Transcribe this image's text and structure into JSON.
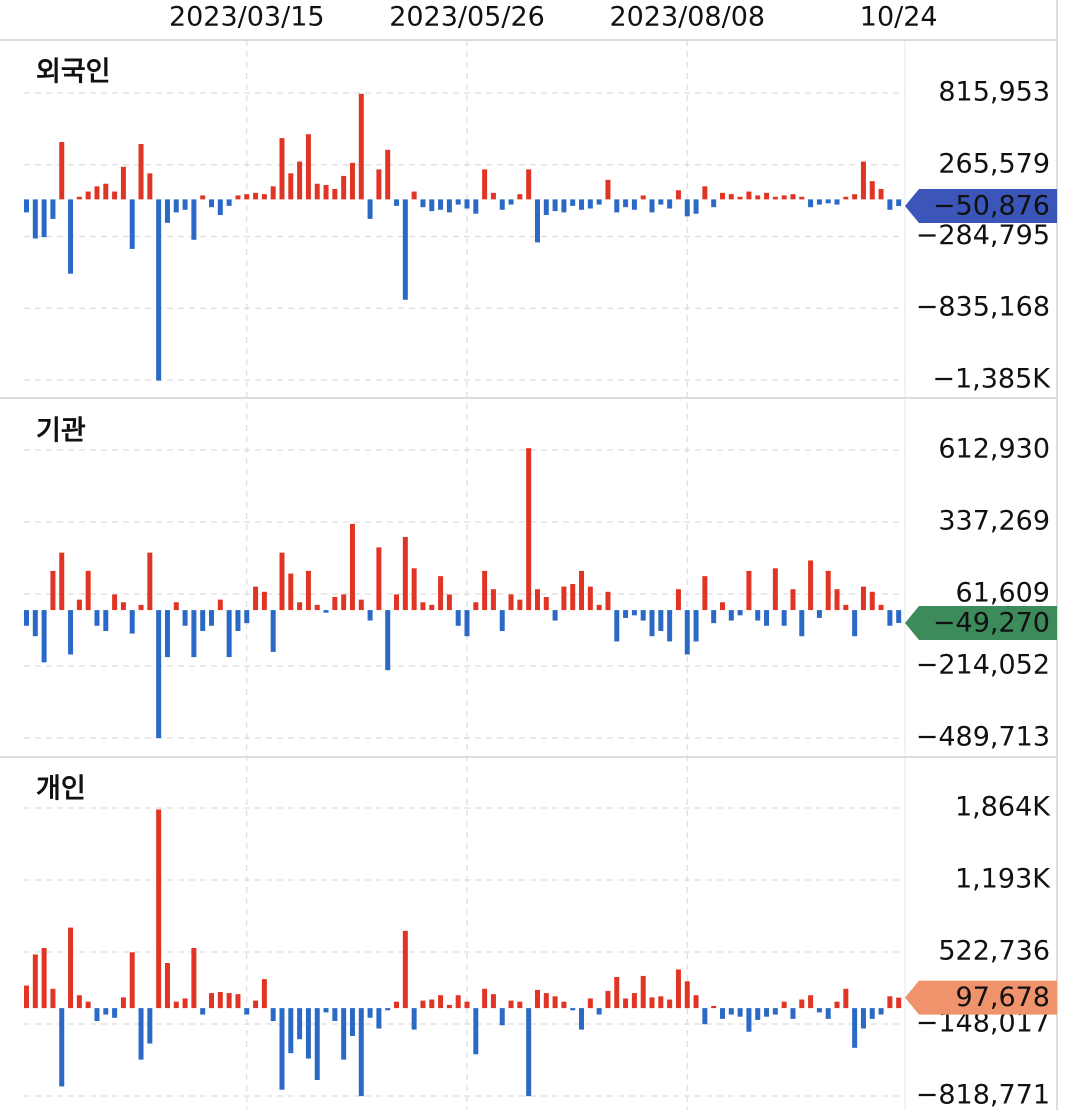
{
  "chart_data": [
    {
      "type": "bar",
      "title": "외국인",
      "title_color": "#3b56a8",
      "up_color": "#e03424",
      "down_color": "#2a6ac6",
      "badge_color": "#3b56b8",
      "categories": [
        null,
        null,
        null,
        null,
        null,
        null,
        null,
        null,
        null,
        null,
        null,
        null,
        null,
        null,
        null,
        null,
        null,
        null,
        null,
        null,
        null,
        null,
        null,
        null,
        null,
        "2023/03/15",
        null,
        null,
        null,
        null,
        null,
        null,
        null,
        null,
        null,
        null,
        null,
        null,
        null,
        null,
        null,
        null,
        null,
        null,
        null,
        null,
        null,
        null,
        null,
        null,
        "2023/05/26",
        null,
        null,
        null,
        null,
        null,
        null,
        null,
        null,
        null,
        null,
        null,
        null,
        null,
        null,
        null,
        null,
        null,
        null,
        null,
        null,
        null,
        null,
        null,
        null,
        "2023/08/08",
        null,
        null,
        null,
        null,
        null,
        null,
        null,
        null,
        null,
        null,
        null,
        null,
        null,
        null,
        null,
        null,
        null,
        null,
        null,
        null,
        null,
        null,
        null,
        "10/24"
      ],
      "values": [
        -100000,
        -300000,
        -290000,
        -150000,
        440000,
        -570000,
        20000,
        60000,
        100000,
        120000,
        60000,
        250000,
        -380000,
        425000,
        200000,
        -1390000,
        -180000,
        -100000,
        -80000,
        -310000,
        30000,
        -60000,
        -120000,
        -50000,
        30000,
        40000,
        50000,
        40000,
        100000,
        470000,
        200000,
        290000,
        500000,
        120000,
        110000,
        80000,
        180000,
        280000,
        810000,
        -150000,
        230000,
        380000,
        -50000,
        -770000,
        60000,
        -60000,
        -90000,
        -80000,
        -100000,
        -40000,
        -70000,
        -110000,
        230000,
        50000,
        -80000,
        -40000,
        40000,
        230000,
        -330000,
        -120000,
        -90000,
        -100000,
        -50000,
        -80000,
        -70000,
        -40000,
        150000,
        -100000,
        -60000,
        -80000,
        30000,
        -100000,
        -40000,
        -70000,
        70000,
        -130000,
        -110000,
        100000,
        -60000,
        50000,
        40000,
        20000,
        60000,
        30000,
        50000,
        20000,
        30000,
        40000,
        20000,
        -60000,
        -40000,
        -30000,
        -40000,
        20000,
        40000,
        290000,
        140000,
        80000,
        -80000,
        -50876
      ],
      "ylim": [
        -1385543,
        815953
      ],
      "yticks": [
        {
          "value": -1385543,
          "label": "−1,385K"
        },
        {
          "value": -835168,
          "label": "−835,168"
        },
        {
          "value": -284795,
          "label": "−284,795"
        },
        {
          "value": 265579,
          "label": "265,579"
        },
        {
          "value": 815953,
          "label": "815,953"
        }
      ],
      "current": {
        "value": -50876,
        "label": "−50,876"
      }
    },
    {
      "type": "bar",
      "title": "기관",
      "title_color": "#3d8a5a",
      "up_color": "#e03424",
      "down_color": "#2a6ac6",
      "badge_color": "#3d8a5a",
      "values": [
        -60000,
        -100000,
        -200000,
        150000,
        220000,
        -170000,
        40000,
        150000,
        -60000,
        -80000,
        60000,
        30000,
        -90000,
        20000,
        220000,
        -490000,
        -180000,
        30000,
        -60000,
        -180000,
        -80000,
        -60000,
        40000,
        -180000,
        -80000,
        -50000,
        90000,
        70000,
        -160000,
        220000,
        140000,
        30000,
        150000,
        20000,
        -10000,
        50000,
        60000,
        330000,
        40000,
        -40000,
        240000,
        -230000,
        60000,
        280000,
        160000,
        30000,
        20000,
        130000,
        60000,
        -60000,
        -100000,
        30000,
        150000,
        80000,
        -80000,
        60000,
        40000,
        620000,
        80000,
        50000,
        -40000,
        90000,
        100000,
        150000,
        90000,
        20000,
        70000,
        -120000,
        -30000,
        -20000,
        -40000,
        -100000,
        -80000,
        -120000,
        80000,
        -170000,
        -120000,
        130000,
        -50000,
        30000,
        -40000,
        -20000,
        150000,
        -40000,
        -60000,
        160000,
        -60000,
        80000,
        -100000,
        190000,
        -30000,
        150000,
        80000,
        20000,
        -100000,
        90000,
        70000,
        20000,
        -60000,
        -49270
      ],
      "ylim": [
        -489713,
        612930
      ],
      "yticks": [
        {
          "value": -489713,
          "label": "−489,713"
        },
        {
          "value": -214052,
          "label": "−214,052"
        },
        {
          "value": 61609,
          "label": "61,609"
        },
        {
          "value": 337269,
          "label": "337,269"
        },
        {
          "value": 612930,
          "label": "612,930"
        }
      ],
      "current": {
        "value": -49270,
        "label": "−49,270"
      }
    },
    {
      "type": "bar",
      "title": "개인",
      "title_color": "#ec8f68",
      "up_color": "#e03424",
      "down_color": "#2a6ac6",
      "badge_color": "#f0926b",
      "values": [
        210000,
        500000,
        560000,
        180000,
        -730000,
        750000,
        120000,
        60000,
        -120000,
        -60000,
        -90000,
        100000,
        520000,
        -480000,
        -330000,
        1850000,
        420000,
        60000,
        90000,
        560000,
        -60000,
        140000,
        150000,
        140000,
        130000,
        -60000,
        70000,
        270000,
        -120000,
        -760000,
        -420000,
        -290000,
        -470000,
        -670000,
        -40000,
        -120000,
        -480000,
        -260000,
        -820000,
        -90000,
        -190000,
        -20000,
        60000,
        720000,
        -200000,
        70000,
        80000,
        120000,
        30000,
        120000,
        60000,
        -430000,
        180000,
        130000,
        -160000,
        70000,
        60000,
        -820000,
        170000,
        140000,
        110000,
        60000,
        -20000,
        -200000,
        90000,
        -60000,
        160000,
        290000,
        90000,
        140000,
        300000,
        100000,
        110000,
        80000,
        360000,
        250000,
        120000,
        -150000,
        20000,
        -100000,
        -60000,
        -80000,
        -220000,
        -110000,
        -80000,
        -60000,
        60000,
        -100000,
        80000,
        120000,
        -40000,
        -100000,
        60000,
        180000,
        -370000,
        -190000,
        -100000,
        -60000,
        110000,
        97678
      ],
      "ylim": [
        -818771,
        1864242
      ],
      "yticks": [
        {
          "value": -818771,
          "label": "−818,771"
        },
        {
          "value": -148017,
          "label": "−148,017"
        },
        {
          "value": 522736,
          "label": "522,736"
        },
        {
          "value": 1193489,
          "label": "1,193K"
        },
        {
          "value": 1864242,
          "label": "1,864K"
        }
      ],
      "current": {
        "value": 97678,
        "label": "97,678"
      }
    }
  ]
}
